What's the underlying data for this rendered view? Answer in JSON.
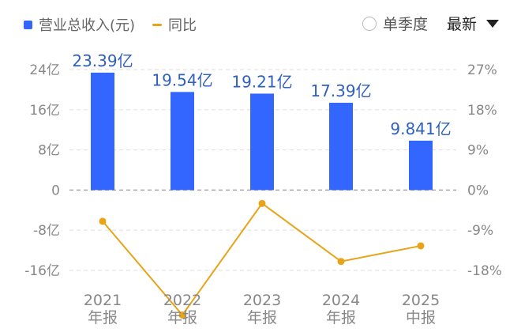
{
  "legend": {
    "bar_label": "营业总收入(元)",
    "line_label": "同比"
  },
  "controls": {
    "quarter_label": "单季度",
    "sort_label": "最新"
  },
  "colors": {
    "bar": "#3366ff",
    "line": "#e8a317",
    "data_label": "#2f5fbf",
    "axis_text": "#888888"
  },
  "chart_data": {
    "type": "bar",
    "categories": [
      "2021\n年报",
      "2022\n年报",
      "2023\n年报",
      "2024\n年报",
      "2025\n中报"
    ],
    "series": [
      {
        "name": "营业总收入(元)",
        "type": "bar",
        "axis": "left",
        "values": [
          23.39,
          19.54,
          19.21,
          17.39,
          9.841
        ],
        "labels": [
          "23.39亿",
          "19.54亿",
          "19.21亿",
          "17.39亿",
          "9.841亿"
        ]
      },
      {
        "name": "同比",
        "type": "line",
        "axis": "right",
        "values": [
          -7,
          -28,
          -3,
          -16,
          -12.5
        ]
      }
    ],
    "y_left": {
      "ylim": [
        -16,
        24
      ],
      "ticks": [
        24,
        16,
        8,
        0,
        -8,
        -16
      ],
      "tick_labels": [
        "24亿",
        "16亿",
        "8亿",
        "0",
        "-8亿",
        "-16亿"
      ]
    },
    "y_right": {
      "ylim": [
        -18,
        27
      ],
      "ticks": [
        27,
        18,
        9,
        0,
        -9,
        -18
      ],
      "tick_labels": [
        "27%",
        "18%",
        "9%",
        "0%",
        "-9%",
        "-18%"
      ]
    },
    "grid": "dashed horizontal",
    "legend_position": "top-left"
  }
}
